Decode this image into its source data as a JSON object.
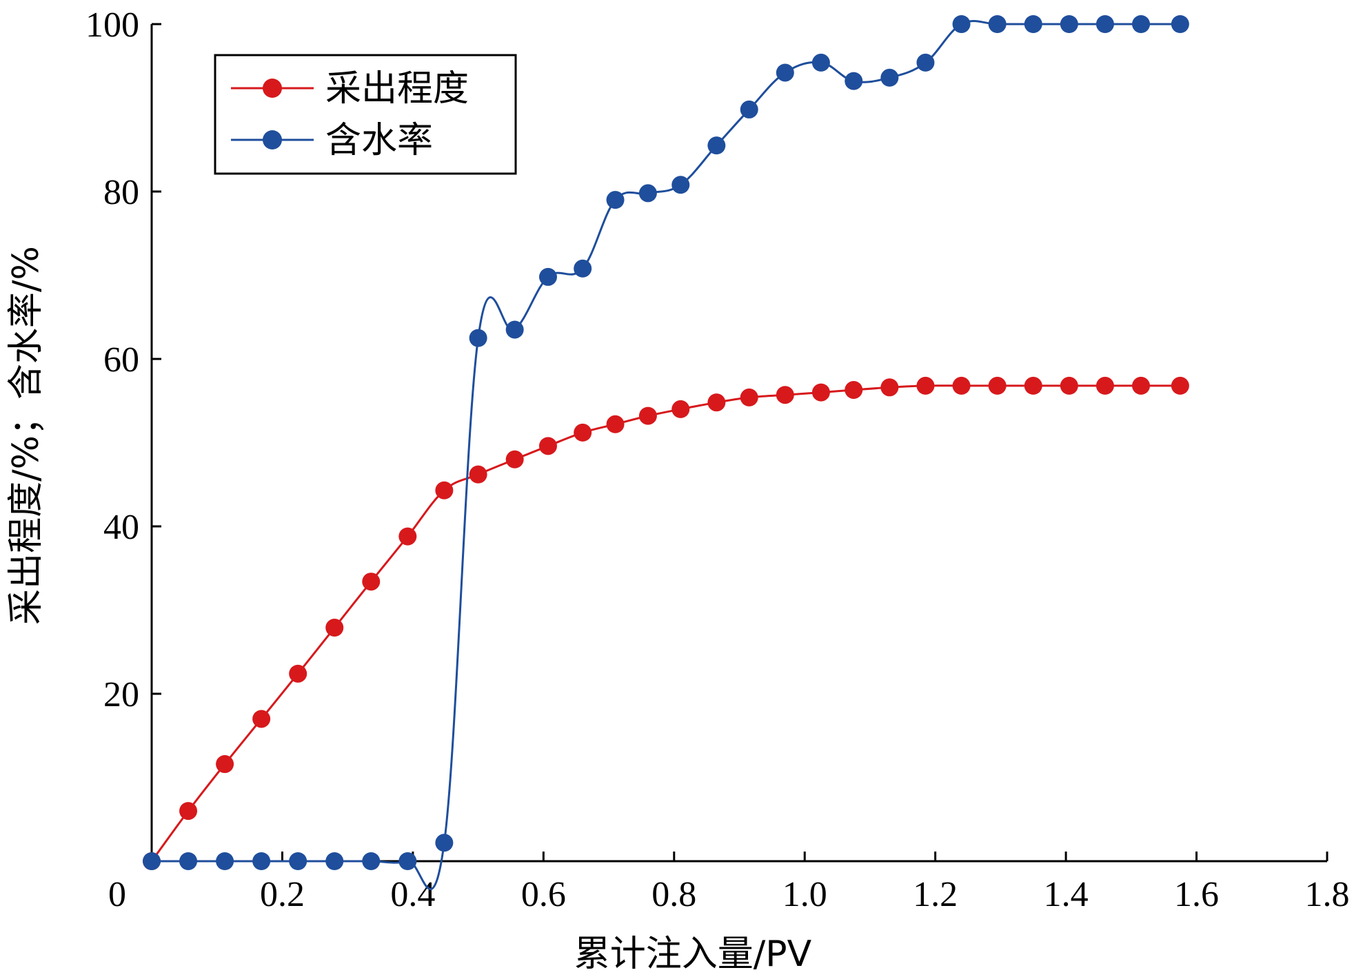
{
  "chart_data": {
    "type": "line",
    "xlabel": "累计注入量/PV",
    "ylabel": "采出程度/%；含水率/%",
    "xlim": [
      0,
      1.8
    ],
    "ylim": [
      0,
      100
    ],
    "x_ticks": [
      "0",
      "0.2",
      "0.4",
      "0.6",
      "0.8",
      "1.0",
      "1.2",
      "1.4",
      "1.6",
      "1.8"
    ],
    "y_ticks": [
      "20",
      "40",
      "60",
      "80",
      "100"
    ],
    "grid": false,
    "legend_position": "top-left",
    "series": [
      {
        "name": "采出程度",
        "color": "#d7191c",
        "marker": "circle",
        "points": [
          [
            0.0,
            0.0
          ],
          [
            0.056,
            6.0
          ],
          [
            0.112,
            11.6
          ],
          [
            0.168,
            17.0
          ],
          [
            0.224,
            22.4
          ],
          [
            0.28,
            27.9
          ],
          [
            0.336,
            33.4
          ],
          [
            0.392,
            38.8
          ],
          [
            0.448,
            44.3
          ],
          [
            0.5,
            46.2
          ],
          [
            0.556,
            48.0
          ],
          [
            0.607,
            49.6
          ],
          [
            0.66,
            51.2
          ],
          [
            0.71,
            52.2
          ],
          [
            0.76,
            53.2
          ],
          [
            0.81,
            54.0
          ],
          [
            0.865,
            54.8
          ],
          [
            0.915,
            55.4
          ],
          [
            0.97,
            55.7
          ],
          [
            1.025,
            56.0
          ],
          [
            1.075,
            56.3
          ],
          [
            1.13,
            56.6
          ],
          [
            1.185,
            56.8
          ],
          [
            1.24,
            56.8
          ],
          [
            1.295,
            56.8
          ],
          [
            1.35,
            56.8
          ],
          [
            1.405,
            56.8
          ],
          [
            1.46,
            56.8
          ],
          [
            1.515,
            56.8
          ],
          [
            1.575,
            56.8
          ]
        ]
      },
      {
        "name": "含水率",
        "color": "#1f4e9c",
        "marker": "circle",
        "points": [
          [
            0.0,
            0.0
          ],
          [
            0.056,
            0.0
          ],
          [
            0.112,
            0.0
          ],
          [
            0.168,
            0.0
          ],
          [
            0.224,
            0.0
          ],
          [
            0.28,
            0.0
          ],
          [
            0.336,
            0.0
          ],
          [
            0.392,
            0.0
          ],
          [
            0.448,
            2.2
          ],
          [
            0.5,
            62.5
          ],
          [
            0.556,
            63.5
          ],
          [
            0.607,
            69.8
          ],
          [
            0.66,
            70.8
          ],
          [
            0.71,
            79.0
          ],
          [
            0.76,
            79.8
          ],
          [
            0.81,
            80.8
          ],
          [
            0.865,
            85.5
          ],
          [
            0.915,
            89.8
          ],
          [
            0.97,
            94.2
          ],
          [
            1.025,
            95.4
          ],
          [
            1.075,
            93.2
          ],
          [
            1.13,
            93.6
          ],
          [
            1.185,
            95.4
          ],
          [
            1.24,
            100.0
          ],
          [
            1.295,
            100.0
          ],
          [
            1.35,
            100.0
          ],
          [
            1.405,
            100.0
          ],
          [
            1.46,
            100.0
          ],
          [
            1.515,
            100.0
          ],
          [
            1.575,
            100.0
          ]
        ]
      }
    ]
  }
}
